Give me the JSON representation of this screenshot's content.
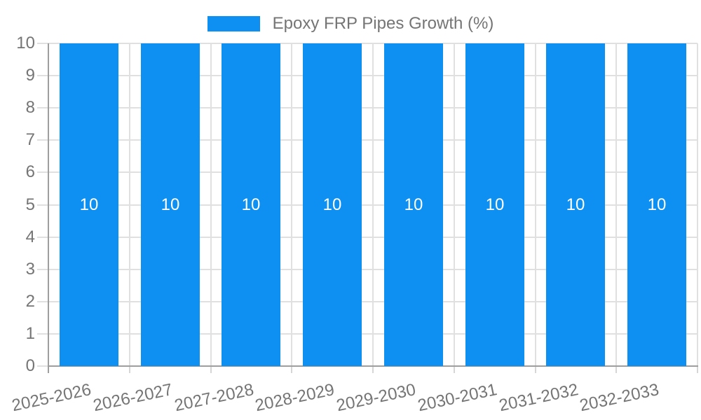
{
  "chart_data": {
    "type": "bar",
    "legend_label": "Epoxy FRP Pipes Growth (%)",
    "categories": [
      "2025-2026",
      "2026-2027",
      "2027-2028",
      "2028-2029",
      "2029-2030",
      "2030-2031",
      "2031-2032",
      "2032-2033"
    ],
    "series": [
      {
        "name": "Epoxy FRP Pipes Growth (%)",
        "values": [
          10,
          10,
          10,
          10,
          10,
          10,
          10,
          10
        ]
      }
    ],
    "bar_value_labels": [
      "10",
      "10",
      "10",
      "10",
      "10",
      "10",
      "10",
      "10"
    ],
    "yticks": [
      0,
      1,
      2,
      3,
      4,
      5,
      6,
      7,
      8,
      9,
      10
    ],
    "ylim": [
      0,
      10
    ],
    "xlabel": "",
    "ylabel": "",
    "grid": true,
    "legend_position": "top-center",
    "colors": {
      "bar": "#0d90f2",
      "grid": "#e0e0e0",
      "axis": "#9e9e9e",
      "tick_label": "#757575",
      "bar_value_label": "#ffffff",
      "background": "#ffffff"
    }
  }
}
